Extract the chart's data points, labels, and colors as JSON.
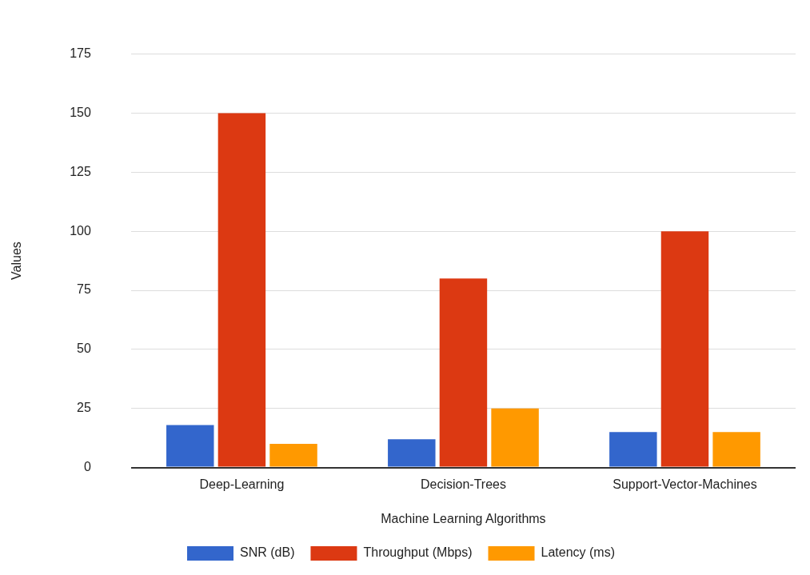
{
  "chart_data": {
    "type": "bar",
    "xlabel": "Machine Learning Algorithms",
    "ylabel": "Values",
    "categories": [
      "Deep-Learning",
      "Decision-Trees",
      "Support-Vector-Machines"
    ],
    "series": [
      {
        "name": "SNR (dB)",
        "color": "#3366cc",
        "values": [
          18,
          12,
          15
        ]
      },
      {
        "name": "Throughput (Mbps)",
        "color": "#dc3912",
        "values": [
          150,
          80,
          100
        ]
      },
      {
        "name": "Latency (ms)",
        "color": "#ff9900",
        "values": [
          10,
          25,
          15
        ]
      }
    ],
    "ylim": [
      0,
      175
    ],
    "yticks": [
      0,
      25,
      50,
      75,
      100,
      125,
      150,
      175
    ],
    "grid": "y",
    "legend": "bottom"
  }
}
